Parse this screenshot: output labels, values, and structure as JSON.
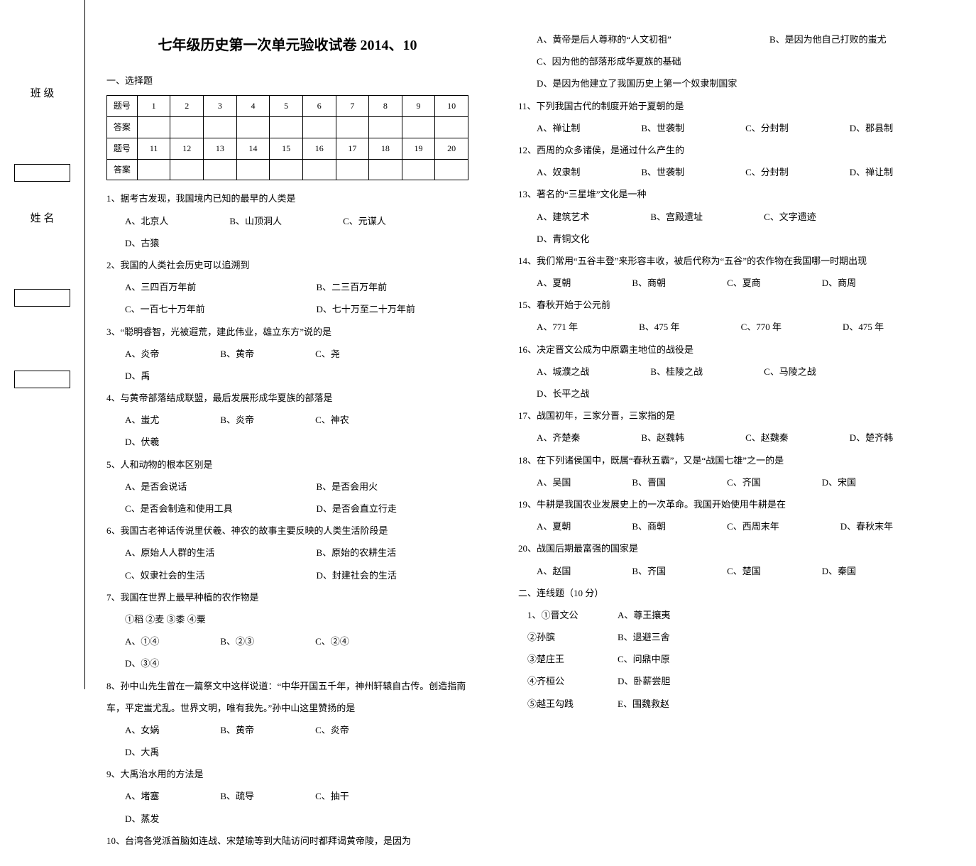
{
  "binding": {
    "class_label": "班   级",
    "name_label": "姓   名"
  },
  "title": "七年级历史第一次单元验收试卷   2014、10",
  "section1": "一、选择题",
  "grid": {
    "row_label_q": "题号",
    "row_label_a": "答案",
    "nums1": [
      "1",
      "2",
      "3",
      "4",
      "5",
      "6",
      "7",
      "8",
      "9",
      "10"
    ],
    "nums2": [
      "11",
      "12",
      "13",
      "14",
      "15",
      "16",
      "17",
      "18",
      "19",
      "20"
    ]
  },
  "questions_left": [
    {
      "q": "1、据考古发现，我国境内已知的最早的人类是",
      "opts": [
        "A、北京人",
        "B、山顶洞人",
        "C、元谋人",
        "D、古猿"
      ]
    },
    {
      "q": "2、我国的人类社会历史可以追溯到",
      "opts": [
        "A、三四百万年前",
        "B、二三百万年前",
        "C、一百七十万年前",
        "D、七十万至二十万年前"
      ],
      "two_col": true
    },
    {
      "q": "3、“聪明睿智，光被遐荒，建此伟业，雄立东方”说的是",
      "opts": [
        "A、炎帝",
        "B、黄帝",
        "C、尧",
        "D、禹"
      ]
    },
    {
      "q": "4、与黄帝部落结成联盟，最后发展形成华夏族的部落是",
      "opts": [
        "A、蚩尤",
        "B、炎帝",
        "C、神农",
        "D、伏羲"
      ]
    },
    {
      "q": "5、人和动物的根本区别是",
      "opts": [
        "A、是否会说话",
        "B、是否会用火",
        "C、是否会制造和使用工具",
        "D、是否会直立行走"
      ],
      "two_col": true
    },
    {
      "q": "6、我国古老神话传说里伏羲、神农的故事主要反映的人类生活阶段是",
      "opts": [
        "A、原始人人群的生活",
        "B、原始的农耕生活",
        "C、奴隶社会的生活",
        "D、封建社会的生活"
      ],
      "two_col": true
    },
    {
      "q": "7、我国在世界上最早种植的农作物是",
      "pre": "①稻 ②麦 ③黍 ④粟",
      "opts": [
        "A、①④",
        "B、②③",
        "C、②④",
        "D、③④"
      ]
    },
    {
      "q": "8、孙中山先生曾在一篇祭文中这样说道：“中华开国五千年，神州轩辕自古传。创造指南车，平定蚩尤乱。世界文明，唯有我先。”孙中山这里赞扬的是",
      "opts": [
        "A、女娲",
        "B、黄帝",
        "C、炎帝",
        "D、大禹"
      ]
    },
    {
      "q": "9、大禹治水用的方法是",
      "opts": [
        "A、堵塞",
        "B、疏导",
        "C、抽干",
        "D、蒸发"
      ]
    },
    {
      "q": "10、台湾各党派首脑如连战、宋楚瑜等到大陆访问时都拜谒黄帝陵，是因为"
    }
  ],
  "q10_opts": [
    "A、黄帝是后人尊称的“人文初祖”",
    "B、是因为他自己打败的蚩尤",
    "C、因为他的部落形成华夏族的基础",
    "D、是因为他建立了我国历史上第一个奴隶制国家"
  ],
  "questions_right": [
    {
      "q": "11、下列我国古代的制度开始于夏朝的是",
      "opts": [
        "A、禅让制",
        "B、世袭制",
        "C、分封制",
        "D、郡县制"
      ]
    },
    {
      "q": "12、西周的众多诸侯，是通过什么产生的",
      "opts": [
        "A、奴隶制",
        "B、世袭制",
        "C、分封制",
        "D、禅让制"
      ]
    },
    {
      "q": "13、著名的“三星堆”文化是一种",
      "opts": [
        "A、建筑艺术",
        "B、宫殿遗址",
        "C、文字遗迹",
        "D、青铜文化"
      ]
    },
    {
      "q": "14、我们常用“五谷丰登”来形容丰收，被后代称为“五谷”的农作物在我国哪一时期出现",
      "opts": [
        "A、夏朝",
        "B、商朝",
        "C、夏商",
        "D、商周"
      ]
    },
    {
      "q": "15、春秋开始于公元前",
      "opts": [
        "A、771 年",
        "B、475 年",
        "C、770 年",
        "D、475 年"
      ]
    },
    {
      "q": "16、决定晋文公成为中原霸主地位的战役是",
      "opts": [
        "A、城濮之战",
        "B、桂陵之战",
        "C、马陵之战",
        "D、长平之战"
      ]
    },
    {
      "q": "17、战国初年，三家分晋，三家指的是",
      "opts": [
        "A、齐楚秦",
        "B、赵魏韩",
        "C、赵魏秦",
        "D、楚齐韩"
      ]
    },
    {
      "q": "18、在下列诸侯国中，既属“春秋五霸”，又是“战国七雄”之一的是",
      "opts": [
        "A、吴国",
        "B、晋国",
        "C、齐国",
        "D、宋国"
      ]
    },
    {
      "q": "19、牛耕是我国农业发展史上的一次革命。我国开始使用牛耕是在",
      "opts": [
        "A、夏朝",
        "B、商朝",
        "C、西周末年",
        "D、春秋末年"
      ]
    },
    {
      "q": "20、战国后期最富强的国家是",
      "opts": [
        "A、赵国",
        "B、齐国",
        "C、楚国",
        "D、秦国"
      ]
    }
  ],
  "section2": "二、连线题（10 分）",
  "matching": {
    "left": [
      "1、①晋文公",
      "②孙膑",
      "③楚庄王",
      "④齐桓公",
      "⑤越王勾践"
    ],
    "right": [
      "A、尊王攘夷",
      "B、退避三舍",
      "C、问鼎中原",
      "D、卧薪尝胆",
      "E、围魏救赵"
    ]
  }
}
